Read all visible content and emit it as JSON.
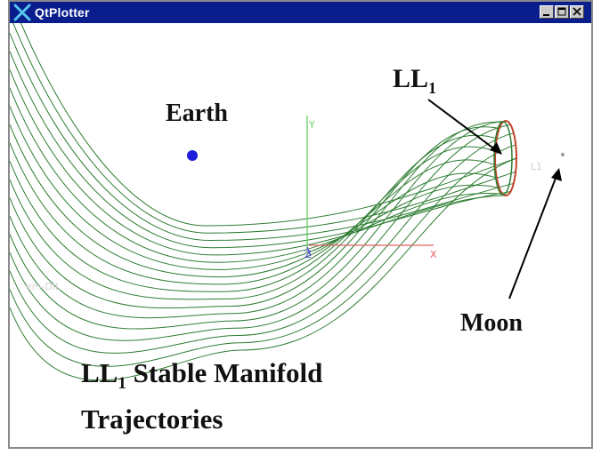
{
  "window": {
    "title": "QtPlotter",
    "buttons": [
      "minimize",
      "maximize",
      "close"
    ]
  },
  "plot": {
    "earth_label": "Earth",
    "moon_label": "Moon",
    "ll1_label": {
      "main": "LL",
      "sub": "1"
    },
    "caption": {
      "main": "LL",
      "sub": "1",
      "rest": " Stable Manifold",
      "line2": "Trajectories"
    },
    "axis_labels": {
      "x": "X",
      "y": "Y",
      "z": "Z"
    },
    "faint_label": "L1",
    "faint_legend": "em-DIL  ..."
  },
  "colors": {
    "titlebar": "#0a1d8c",
    "trajectory": "#2e7d32",
    "x_axis": "#e06060",
    "y_axis": "#5fd35f",
    "z_axis": "#4a4ad0",
    "earth": "#1d1ddb",
    "orbit_edge": "#c0442a"
  },
  "icons": {
    "app": "qtplotter-x-icon",
    "earth": "earth-dot-icon",
    "moon": "moon-dot-icon"
  }
}
